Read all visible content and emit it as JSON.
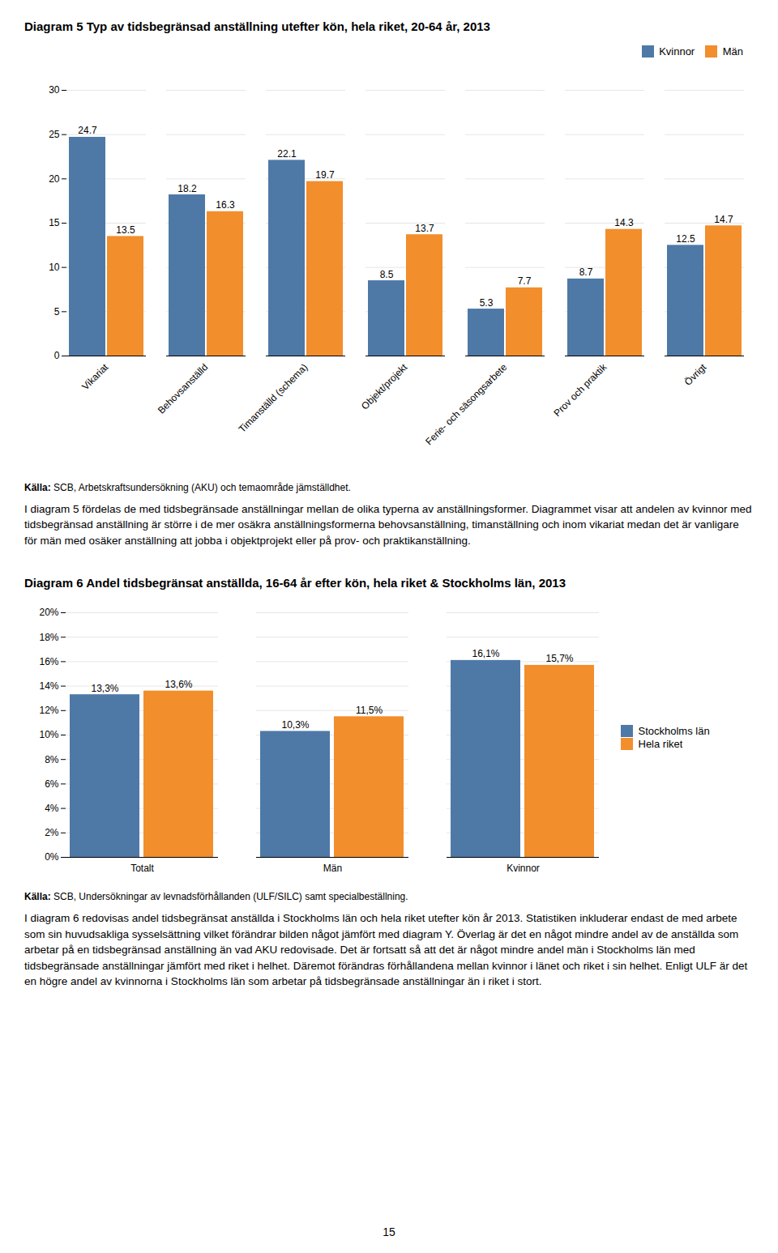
{
  "chart_data": [
    {
      "type": "bar",
      "title": "Diagram 5 Typ av tidsbegränsad anställning utefter kön, hela riket, 20-64 år, 2013",
      "categories": [
        "Vikariat",
        "Behovsanställd",
        "Timanställd (schema)",
        "Objekt/projekt",
        "Ferie- och säsongsarbete",
        "Prov och praktik",
        "Övrigt"
      ],
      "series": [
        {
          "name": "Kvinnor",
          "values": [
            24.7,
            18.2,
            22.1,
            8.5,
            5.3,
            8.7,
            12.5
          ]
        },
        {
          "name": "Män",
          "values": [
            13.5,
            16.3,
            19.7,
            13.7,
            7.7,
            14.3,
            14.7
          ]
        }
      ],
      "ylim": [
        0,
        30
      ],
      "yticks": [
        0,
        5,
        10,
        15,
        20,
        25,
        30
      ],
      "grid": true,
      "legend": "upper right",
      "data_labels": true,
      "annotations": [
        "Källa: SCB, Arbetskraftsundersökning (AKU) och temaområde jämställdhet.",
        "I diagram 5 fördelas de med tidsbegränsade anställningar mellan de olika typerna av anställningsformer. Diagrammet visar att andelen av kvinnor med tidsbegränsad anställning är större i de mer osäkra anställningsformerna behovsanställning, timanställning och inom vikariat medan det är vanligare för män med osäker anställning att jobba i objektprojekt eller på prov- och praktikanställning."
      ]
    },
    {
      "type": "bar",
      "title": "Diagram 6 Andel tidsbegränsat anställda, 16-64 år efter kön, hela riket & Stockholms län, 2013",
      "categories": [
        "Totalt",
        "Män",
        "Kvinnor"
      ],
      "series": [
        {
          "name": "Stockholms län",
          "values": [
            0.133,
            0.103,
            0.161
          ],
          "value_labels": [
            "13,3%",
            "10,3%",
            "16,1%"
          ]
        },
        {
          "name": "Hela riket",
          "values": [
            0.136,
            0.115,
            0.157
          ],
          "value_labels": [
            "13,6%",
            "11,5%",
            "15,7%"
          ]
        }
      ],
      "ylim": [
        0,
        0.2
      ],
      "yticks": [
        {
          "value": 0,
          "label": "0%"
        },
        {
          "value": 0.02,
          "label": "2%"
        },
        {
          "value": 0.04,
          "label": "4%"
        },
        {
          "value": 0.06,
          "label": "6%"
        },
        {
          "value": 0.08,
          "label": "8%"
        },
        {
          "value": 0.1,
          "label": "10%"
        },
        {
          "value": 0.12,
          "label": "12%"
        },
        {
          "value": 0.14,
          "label": "14%"
        },
        {
          "value": 0.16,
          "label": "16%"
        },
        {
          "value": 0.18,
          "label": "18%"
        },
        {
          "value": 0.2,
          "label": "20%"
        }
      ],
      "grid": true,
      "legend": "right",
      "data_labels": true,
      "annotations": [
        "Källa: SCB, Undersökningar av levnadsförhållanden (ULF/SILC) samt specialbeställning.",
        "I diagram 6 redovisas andel tidsbegränsat anställda i Stockholms län och hela riket utefter kön år 2013. Statistiken inkluderar endast de med arbete som sin huvudsakliga sysselsättning vilket förändrar bilden något jämfört med diagram Y. Överlag är det en något mindre andel av de anställda som arbetar på en tidsbegränsad anställning än vad AKU redovisade. Det är fortsatt så att det är något mindre andel män i Stockholms län med tidsbegränsade anställningar jämfört med riket i helhet. Däremot förändras förhållandena mellan kvinnor i länet och riket i sin helhet. Enligt ULF är det en högre andel av kvinnorna i Stockholms län som arbetar på tidsbegränsade anställningar än i riket i stort."
      ]
    }
  ],
  "annotations": [
    "15"
  ]
}
